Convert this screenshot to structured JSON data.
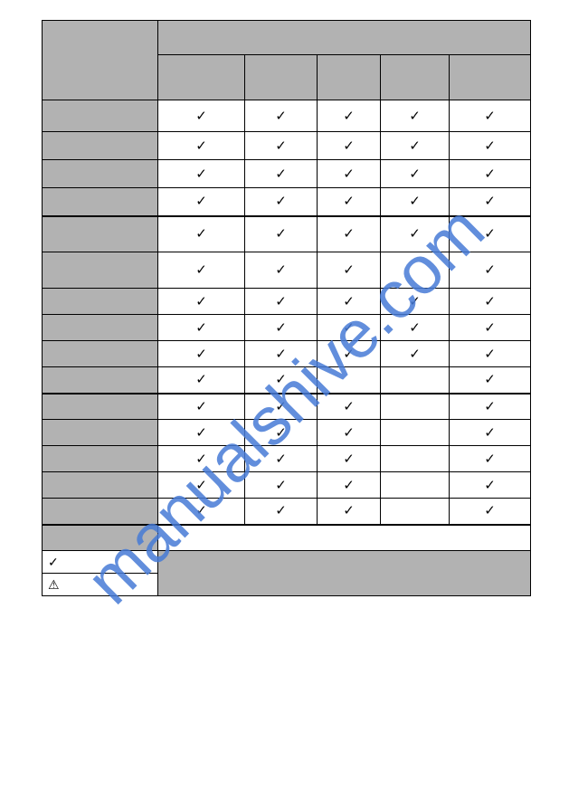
{
  "watermark": "manualshive.com",
  "checkmarks": {
    "glyph": "✓"
  },
  "rows": [
    {
      "c1": true,
      "c2": true,
      "c3": true,
      "c4": true,
      "c5": true
    },
    {
      "c1": true,
      "c2": true,
      "c3": true,
      "c4": true,
      "c5": true
    },
    {
      "c1": true,
      "c2": true,
      "c3": true,
      "c4": true,
      "c5": true
    },
    {
      "c1": true,
      "c2": true,
      "c3": true,
      "c4": true,
      "c5": true
    },
    {
      "c1": true,
      "c2": true,
      "c3": true,
      "c4": true,
      "c5": true
    },
    {
      "c1": true,
      "c2": true,
      "c3": true,
      "c4": false,
      "c5": true
    },
    {
      "c1": true,
      "c2": true,
      "c3": true,
      "c4": true,
      "c5": true
    },
    {
      "c1": true,
      "c2": true,
      "c3": true,
      "c4": true,
      "c5": true
    },
    {
      "c1": true,
      "c2": true,
      "c3": true,
      "c4": true,
      "c5": true
    },
    {
      "c1": true,
      "c2": true,
      "c3": false,
      "c4": false,
      "c5": true
    },
    {
      "c1": true,
      "c2": true,
      "c3": true,
      "c4": false,
      "c5": true
    },
    {
      "c1": true,
      "c2": true,
      "c3": true,
      "c4": false,
      "c5": true
    },
    {
      "c1": true,
      "c2": true,
      "c3": true,
      "c4": false,
      "c5": true
    },
    {
      "c1": true,
      "c2": true,
      "c3": true,
      "c4": false,
      "c5": true
    },
    {
      "c1": true,
      "c2": true,
      "c3": true,
      "c4": false,
      "c5": true
    }
  ],
  "footer": {
    "check": "✓",
    "warning": "⚠"
  }
}
